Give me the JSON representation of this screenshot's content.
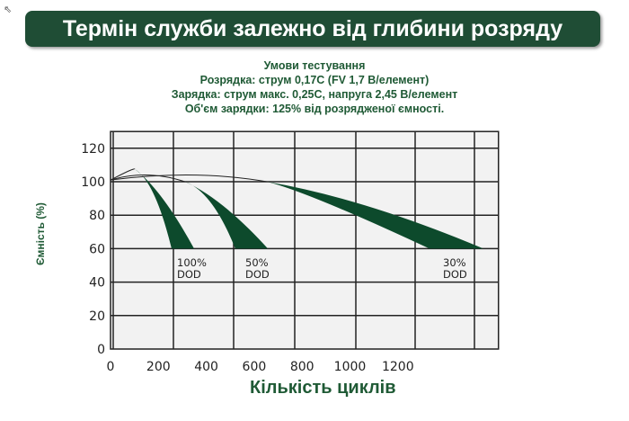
{
  "title": "Термін служби залежно від глибини розряду",
  "conditions": [
    "Умови тестування",
    "Розрядка: струм 0,17C (FV 1,7 В/елемент)",
    "Зарядка: струм макс. 0,25C, напруга 2,45 В/елемент",
    "Об'єм зарядки: 125% від розрядженої ємності."
  ],
  "chart_data": {
    "type": "area",
    "xlabel": "Кількість циклів",
    "ylabel": "Ємність (%)",
    "xlim": [
      0,
      1620
    ],
    "ylim": [
      0,
      130
    ],
    "xticks": [
      0,
      200,
      400,
      600,
      800,
      1000,
      1200
    ],
    "yticks": [
      0,
      20,
      40,
      60,
      80,
      100,
      120
    ],
    "grid": true,
    "fill_color": "#0d4a2c",
    "series": [
      {
        "label": [
          "100%",
          "DOD"
        ],
        "start": [
          0,
          101
        ],
        "peak": [
          100,
          107
        ],
        "band_start": [
          101,
          107.5
        ],
        "end_left": [
          255,
          60
        ],
        "end_right": [
          349,
          60
        ]
      },
      {
        "label": [
          "50%",
          "DOD"
        ],
        "start": [
          0,
          101
        ],
        "peak": [
          150,
          106
        ],
        "band_start": [
          311,
          100
        ],
        "end_left": [
          521,
          60
        ],
        "end_right": [
          657,
          60
        ]
      },
      {
        "label": [
          "30%",
          "DOD"
        ],
        "start": [
          0,
          101
        ],
        "peak": [
          350,
          106
        ],
        "band_start": [
          653,
          100
        ],
        "end_left": [
          1332,
          60
        ],
        "end_right": [
          1557,
          60
        ]
      }
    ]
  }
}
